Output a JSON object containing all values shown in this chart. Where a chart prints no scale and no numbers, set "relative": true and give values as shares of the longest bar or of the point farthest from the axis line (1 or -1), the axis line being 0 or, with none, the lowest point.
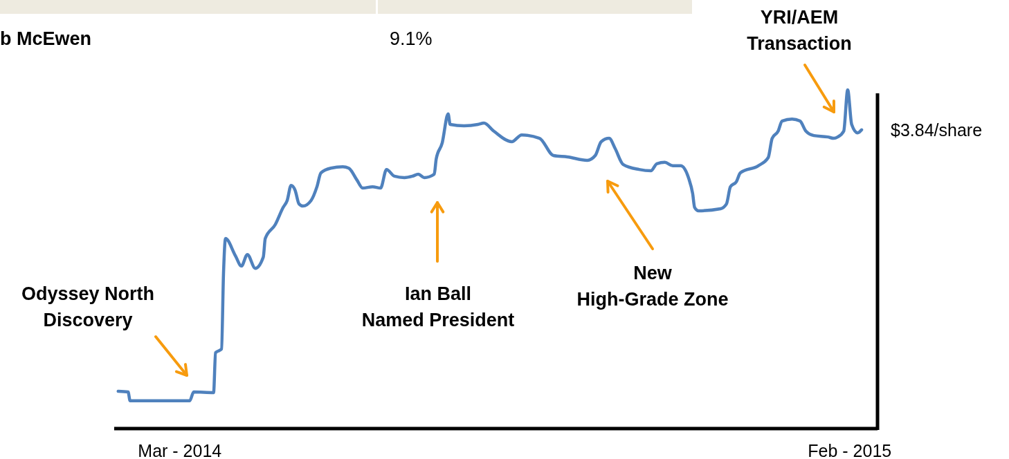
{
  "chart_data": {
    "type": "line",
    "relative": true,
    "x": [
      "2014-01-29",
      "2014-02-03",
      "2014-02-04",
      "2014-02-18",
      "2014-03-06",
      "2014-03-08",
      "2014-03-18",
      "2014-03-19",
      "2014-03-22",
      "2014-03-23",
      "2014-03-24",
      "2014-03-29",
      "2014-04-01",
      "2014-04-04",
      "2014-04-08",
      "2014-04-12",
      "2014-04-13",
      "2014-04-18",
      "2014-04-22",
      "2014-04-24",
      "2014-04-26",
      "2014-04-28",
      "2014-04-30",
      "2014-05-02",
      "2014-05-06",
      "2014-05-09",
      "2014-05-11",
      "2014-05-16",
      "2014-05-22",
      "2014-05-25",
      "2014-05-29",
      "2014-06-01",
      "2014-06-06",
      "2014-06-10",
      "2014-06-13",
      "2014-06-17",
      "2014-06-22",
      "2014-06-26",
      "2014-06-29",
      "2014-07-02",
      "2014-07-07",
      "2014-07-08",
      "2014-07-11",
      "2014-07-14",
      "2014-07-15",
      "2014-07-22",
      "2014-07-29",
      "2014-08-01",
      "2014-08-06",
      "2014-08-15",
      "2014-08-20",
      "2014-08-29",
      "2014-09-05",
      "2014-09-12",
      "2014-09-22",
      "2014-09-26",
      "2014-09-29",
      "2014-10-03",
      "2014-10-06",
      "2014-10-10",
      "2014-10-18",
      "2014-10-24",
      "2014-10-27",
      "2014-10-31",
      "2014-11-04",
      "2014-11-08",
      "2014-11-12",
      "2014-11-14",
      "2014-11-15",
      "2014-11-17",
      "2014-11-28",
      "2014-12-01",
      "2014-12-03",
      "2014-12-06",
      "2014-12-08",
      "2014-12-17",
      "2014-12-22",
      "2014-12-24",
      "2014-12-27",
      "2014-12-29",
      "2015-01-03",
      "2015-01-07",
      "2015-01-10",
      "2015-01-14",
      "2015-01-21",
      "2015-01-24",
      "2015-01-26",
      "2015-01-29",
      "2015-01-31",
      "2015-02-02",
      "2015-02-05",
      "2015-02-07"
    ],
    "series": [
      {
        "color": "#4f81bd",
        "values": [
          0.11,
          0.108,
          0.082,
          0.082,
          0.082,
          0.108,
          0.106,
          0.224,
          0.235,
          0.459,
          0.561,
          0.51,
          0.48,
          0.514,
          0.473,
          0.506,
          0.561,
          0.602,
          0.653,
          0.673,
          0.718,
          0.704,
          0.663,
          0.657,
          0.673,
          0.714,
          0.755,
          0.769,
          0.773,
          0.769,
          0.735,
          0.71,
          0.714,
          0.71,
          0.765,
          0.745,
          0.741,
          0.745,
          0.751,
          0.741,
          0.751,
          0.796,
          0.843,
          0.929,
          0.898,
          0.894,
          0.898,
          0.902,
          0.878,
          0.847,
          0.867,
          0.857,
          0.806,
          0.802,
          0.792,
          0.806,
          0.847,
          0.857,
          0.827,
          0.78,
          0.765,
          0.761,
          0.782,
          0.786,
          0.776,
          0.776,
          0.739,
          0.694,
          0.653,
          0.643,
          0.649,
          0.663,
          0.714,
          0.729,
          0.755,
          0.776,
          0.8,
          0.857,
          0.878,
          0.908,
          0.914,
          0.908,
          0.878,
          0.865,
          0.861,
          0.857,
          0.861,
          0.878,
          1,
          0.898,
          0.873,
          0.882
        ]
      }
    ],
    "xlim": [
      "2014-01-27",
      "2015-02-15"
    ],
    "xticks": [
      {
        "value": "2014-03-01",
        "label": "Mar - 2014"
      },
      {
        "value": "2015-02-01",
        "label": "Feb - 2015"
      }
    ],
    "annotations": [
      "b McEwen",
      "9.1%",
      "Odyssey North\nDiscovery",
      "Ian Ball\nNamed President",
      "New\nHigh-Grade Zone",
      "YRI/AEM\nTransaction",
      {
        "text": "$3.84/share",
        "x": "2015-02-07",
        "y": 0.882
      }
    ],
    "line_style": "solid",
    "marker": "none"
  }
}
